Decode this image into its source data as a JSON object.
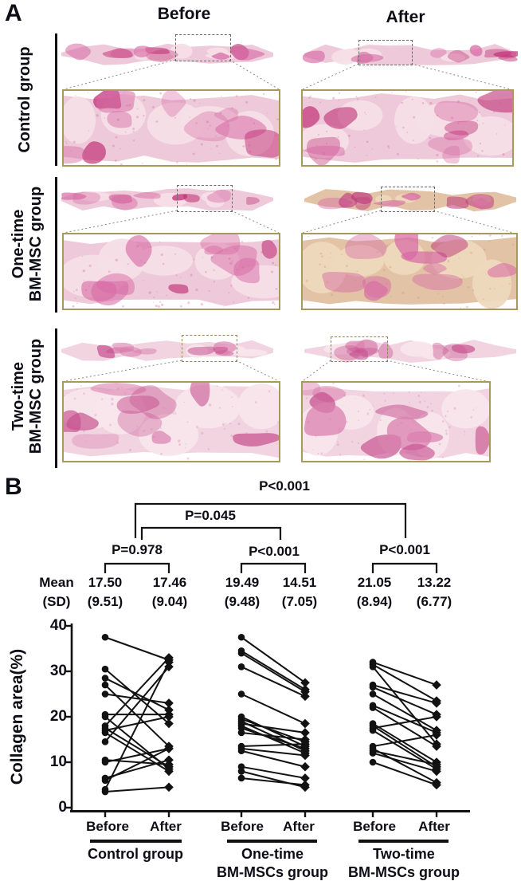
{
  "panel_a": {
    "label": "A",
    "col_headers": [
      "Before",
      "After"
    ],
    "rows": [
      {
        "label_lines": [
          "Control group",
          ""
        ]
      },
      {
        "label_lines": [
          "One-time",
          "BM-MSC group"
        ]
      },
      {
        "label_lines": [
          "Two-time",
          "BM-MSC group"
        ]
      }
    ]
  },
  "panel_b": {
    "label": "B"
  },
  "chart_data": {
    "type": "paired-line-scatter",
    "title": "",
    "ylabel": "Collagen area(%)",
    "ylim": [
      0,
      40
    ],
    "yticks_top_to_bottom": [
      "40",
      "30",
      "20",
      "10",
      "0"
    ],
    "mean_sd_label_lines": [
      "Mean",
      "(SD)"
    ],
    "p_top": "P<0.001",
    "p_mid": "P=0.045",
    "groups": [
      {
        "name_lines": [
          "Control group",
          ""
        ],
        "x_labels": [
          "Before",
          "After"
        ],
        "p_within": "P=0.978",
        "mean_before": "17.50",
        "sd_before": "(9.51)",
        "mean_after": "17.46",
        "sd_after": "(9.04)",
        "pairs": [
          [
            37.5,
            32.5
          ],
          [
            30.5,
            18.5
          ],
          [
            28.5,
            21.5
          ],
          [
            27,
            13.5
          ],
          [
            25,
            23
          ],
          [
            20.5,
            20.5
          ],
          [
            20,
            8.5
          ],
          [
            18,
            33
          ],
          [
            17.5,
            9
          ],
          [
            17,
            20
          ],
          [
            16.5,
            8
          ],
          [
            14.5,
            31
          ],
          [
            10.5,
            9.5
          ],
          [
            10,
            13
          ],
          [
            6.5,
            10.5
          ],
          [
            6,
            13
          ],
          [
            4,
            32
          ],
          [
            3.5,
            4.5
          ]
        ]
      },
      {
        "name_lines": [
          "One-time",
          "BM-MSCs group"
        ],
        "x_labels": [
          "Before",
          "After"
        ],
        "p_within": "P<0.001",
        "mean_before": "19.49",
        "sd_before": "(9.48)",
        "mean_after": "14.51",
        "sd_after": "(7.05)",
        "pairs": [
          [
            37.5,
            27.5
          ],
          [
            34.5,
            26
          ],
          [
            34,
            25.5
          ],
          [
            31,
            24.5
          ],
          [
            25,
            18.5
          ],
          [
            20,
            13.5
          ],
          [
            19.5,
            14.5
          ],
          [
            19,
            12.5
          ],
          [
            18.5,
            16.5
          ],
          [
            18,
            12
          ],
          [
            17.5,
            13
          ],
          [
            16.5,
            15
          ],
          [
            13.5,
            14
          ],
          [
            13,
            11.5
          ],
          [
            12.5,
            9
          ],
          [
            9,
            6.5
          ],
          [
            8,
            4.5
          ],
          [
            6.5,
            5
          ]
        ]
      },
      {
        "name_lines": [
          "Two-time",
          "BM-MSCs group"
        ],
        "x_labels": [
          "Before",
          "After"
        ],
        "p_within": "P<0.001",
        "mean_before": "21.05",
        "sd_before": "(8.94)",
        "mean_after": "13.22",
        "sd_after": "(6.77)",
        "pairs": [
          [
            32,
            27
          ],
          [
            31.5,
            23.5
          ],
          [
            31,
            14
          ],
          [
            27,
            23
          ],
          [
            26.5,
            20.5
          ],
          [
            25,
            17
          ],
          [
            22.5,
            16.5
          ],
          [
            22,
            13.5
          ],
          [
            18.5,
            10
          ],
          [
            18,
            9
          ],
          [
            17.5,
            20
          ],
          [
            17,
            8.5
          ],
          [
            13.5,
            16
          ],
          [
            13,
            5.5
          ],
          [
            12.5,
            9.5
          ],
          [
            12,
            8
          ],
          [
            10,
            5
          ]
        ]
      }
    ]
  }
}
